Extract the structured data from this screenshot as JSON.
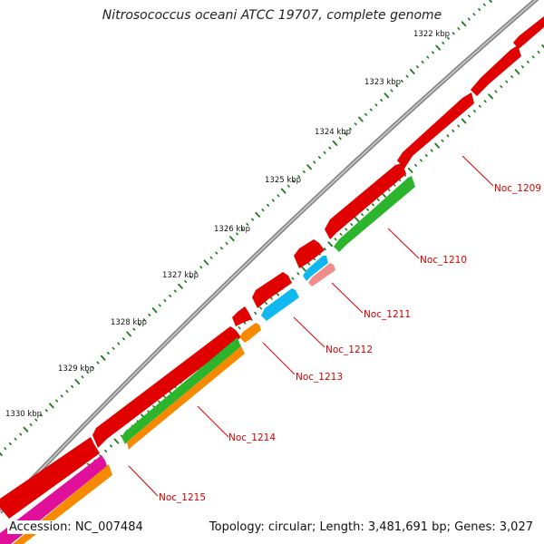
{
  "title": "Nitrosococcus oceani ATCC 19707, complete genome",
  "footer": {
    "accession": "Accession: NC_007484",
    "summary": "Topology: circular; Length: 3,481,691 bp; Genes: 3,027"
  },
  "scale_labels": [
    "1322 kbp",
    "1323 kbp",
    "1324 kbp",
    "1325 kbp",
    "1326 kbp",
    "1327 kbp",
    "1328 kbp",
    "1329 kbp",
    "1330 kbp"
  ],
  "gene_labels": [
    "Noc_1209",
    "Noc_1210",
    "Noc_1211",
    "Noc_1212",
    "Noc_1213",
    "Noc_1214",
    "Noc_1215"
  ],
  "colors": {
    "backbone": "#8a8a8a",
    "cds": "#e00000",
    "green": "#2cb52c",
    "cyan": "#11b8f0",
    "pink": "#ef8c8c",
    "orange": "#f58a00",
    "magenta": "#e0109a",
    "tick": "#1a7a1a",
    "label": "#d40000"
  }
}
